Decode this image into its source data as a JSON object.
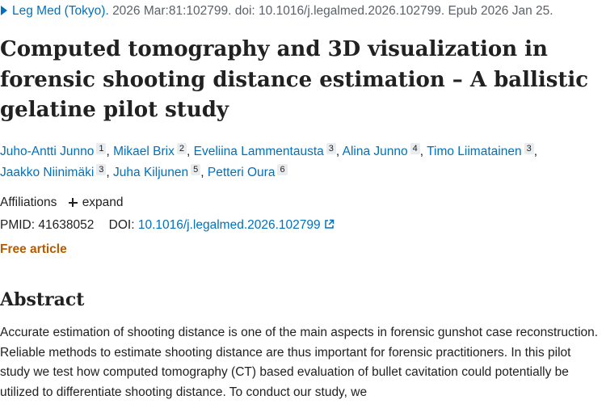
{
  "citation": {
    "journal": "Leg Med (Tokyo).",
    "rest": "2026 Mar:81:102799. doi: 10.1016/j.legalmed.2026.102799. Epub 2026 Jan 25."
  },
  "title": "Computed tomography and 3D visualization in forensic shooting distance estimation – A ballistic gelatine pilot study",
  "authors": [
    {
      "name": "Juho-Antti Junno",
      "aff": "1"
    },
    {
      "name": "Mikael Brix",
      "aff": "2"
    },
    {
      "name": "Eveliina Lammentausta",
      "aff": "3"
    },
    {
      "name": "Alina Junno",
      "aff": "4"
    },
    {
      "name": "Timo Liimatainen",
      "aff": "3"
    },
    {
      "name": "Jaakko Niinimäki",
      "aff": "3"
    },
    {
      "name": "Juha Kiljunen",
      "aff": "5"
    },
    {
      "name": "Petteri Oura",
      "aff": "6"
    }
  ],
  "affiliations": {
    "label": "Affiliations",
    "expand_label": "expand"
  },
  "ids": {
    "pmid_label": "PMID:",
    "pmid": "41638052",
    "doi_label": "DOI:",
    "doi": "10.1016/j.legalmed.2026.102799"
  },
  "free_article": "Free article",
  "abstract": {
    "heading": "Abstract",
    "text": "Accurate estimation of shooting distance is one of the main aspects in forensic gunshot case reconstruction. Reliable methods to estimate shooting distance are thus important for forensic practitioners. In this pilot study we test how computed tomography (CT) based evaluation of bullet cavitation could potentially be utilized to differentiate shooting distance. To conduct our study, we"
  },
  "icons": {
    "citation_toggle": "triangle-right-icon",
    "expand": "plus-icon",
    "external_link": "external-link-icon"
  },
  "colors": {
    "link": "#0071bc",
    "free_article": "#b55c00",
    "text": "#212121",
    "meta": "#5b616b"
  }
}
